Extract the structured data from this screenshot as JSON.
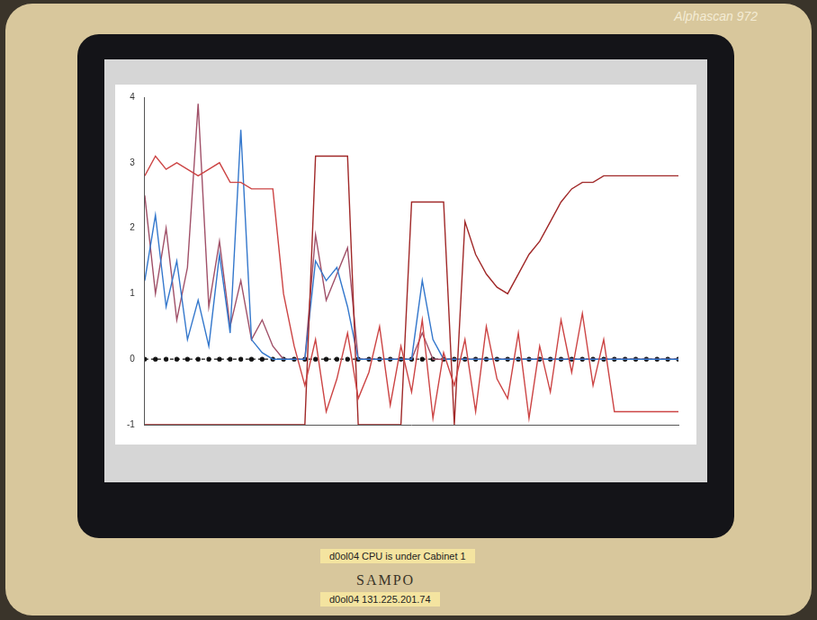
{
  "chart_data": {
    "type": "line",
    "x": [
      0,
      2,
      4,
      6,
      8,
      10,
      12,
      14,
      16,
      18,
      20,
      22,
      24,
      26,
      28,
      30,
      32,
      34,
      36,
      38,
      40,
      42,
      44,
      46,
      48,
      50,
      52,
      54,
      56,
      58,
      60,
      62,
      64,
      66,
      68,
      70,
      72,
      74,
      76,
      78,
      80,
      82,
      84,
      86,
      88,
      90,
      92,
      94,
      96,
      98,
      100
    ],
    "xlim": [
      0,
      100
    ],
    "xticks": [
      0,
      25,
      50,
      75,
      100
    ],
    "ylim": [
      -1,
      4
    ],
    "yticks": [
      -1,
      0,
      1,
      2,
      3,
      4
    ],
    "grid": false,
    "tick_labels": "y",
    "series": [
      {
        "color": "#cc4444",
        "marker": "none",
        "line_style": "solid",
        "values": [
          2.8,
          3.1,
          2.9,
          3.0,
          2.9,
          2.8,
          2.9,
          3.0,
          2.7,
          2.7,
          2.6,
          2.6,
          2.6,
          1.0,
          0.2,
          -0.4,
          0.3,
          -0.8,
          -0.3,
          0.4,
          -0.6,
          -0.2,
          0.5,
          -0.7,
          0.2,
          -0.5,
          0.6,
          -0.9,
          0.1,
          -0.4,
          0.3,
          -0.8,
          0.5,
          -0.3,
          -0.6,
          0.4,
          -0.9,
          0.2,
          -0.5,
          0.6,
          -0.2,
          0.7,
          -0.4,
          0.3,
          -0.8,
          -0.8,
          -0.8,
          -0.8,
          -0.8,
          -0.8,
          -0.8
        ]
      },
      {
        "color": "#a02828",
        "marker": "none",
        "line_style": "solid",
        "values": [
          -1,
          -1,
          -1,
          -1,
          -1,
          -1,
          -1,
          -1,
          -1,
          -1,
          -1,
          -1,
          -1,
          -1,
          -1,
          -1,
          3.1,
          3.1,
          3.1,
          3.1,
          -1,
          -1,
          -1,
          -1,
          -1,
          2.4,
          2.4,
          2.4,
          2.4,
          -1,
          2.1,
          1.6,
          1.3,
          1.1,
          1.0,
          1.3,
          1.6,
          1.8,
          2.1,
          2.4,
          2.6,
          2.7,
          2.7,
          2.8,
          2.8,
          2.8,
          2.8,
          2.8,
          2.8,
          2.8,
          2.8
        ]
      },
      {
        "color": "#3377cc",
        "marker": "none",
        "line_style": "solid",
        "values": [
          1.2,
          2.2,
          0.8,
          1.5,
          0.3,
          0.9,
          0.2,
          1.6,
          0.4,
          3.5,
          0.3,
          0.1,
          0,
          0,
          0,
          0,
          1.5,
          1.2,
          1.4,
          0.8,
          0,
          0,
          0,
          0,
          0,
          0,
          1.2,
          0.3,
          0,
          0,
          0,
          0,
          0,
          0,
          0,
          0,
          0,
          0,
          0,
          0,
          0,
          0,
          0,
          0,
          0,
          0,
          0,
          0,
          0,
          0,
          0
        ]
      },
      {
        "color": "#a05068",
        "marker": "none",
        "line_style": "solid",
        "values": [
          2.5,
          1.0,
          2.0,
          0.6,
          1.4,
          3.9,
          0.8,
          1.8,
          0.5,
          1.2,
          0.3,
          0.6,
          0.2,
          0,
          0,
          0,
          1.9,
          0.9,
          1.3,
          1.7,
          0,
          0,
          0,
          0,
          0,
          0,
          0.4,
          0,
          0,
          0,
          0,
          0,
          0,
          0,
          0,
          0,
          0,
          0,
          0,
          0,
          0,
          0,
          0,
          0,
          0,
          0,
          0,
          0,
          0,
          0,
          0
        ]
      },
      {
        "color": "#111111",
        "marker": "circle",
        "line_style": "dashed",
        "values": [
          0,
          0,
          0,
          0,
          0,
          0,
          0,
          0,
          0,
          0,
          0,
          0,
          0,
          0,
          0,
          0,
          0,
          0,
          0,
          0,
          0,
          0,
          0,
          0,
          0,
          0,
          0,
          0,
          0,
          0,
          0,
          0,
          0,
          0,
          0,
          0,
          0,
          0,
          0,
          0,
          0,
          0,
          0,
          0,
          0,
          0,
          0,
          0,
          0,
          0,
          0
        ]
      }
    ]
  },
  "monitor": {
    "model": "Alphascan 972",
    "brand": "SAMPO",
    "stickers": [
      "d0ol04 CPU is under Cabinet 1",
      "d0ol04 131.225.201.74"
    ]
  }
}
